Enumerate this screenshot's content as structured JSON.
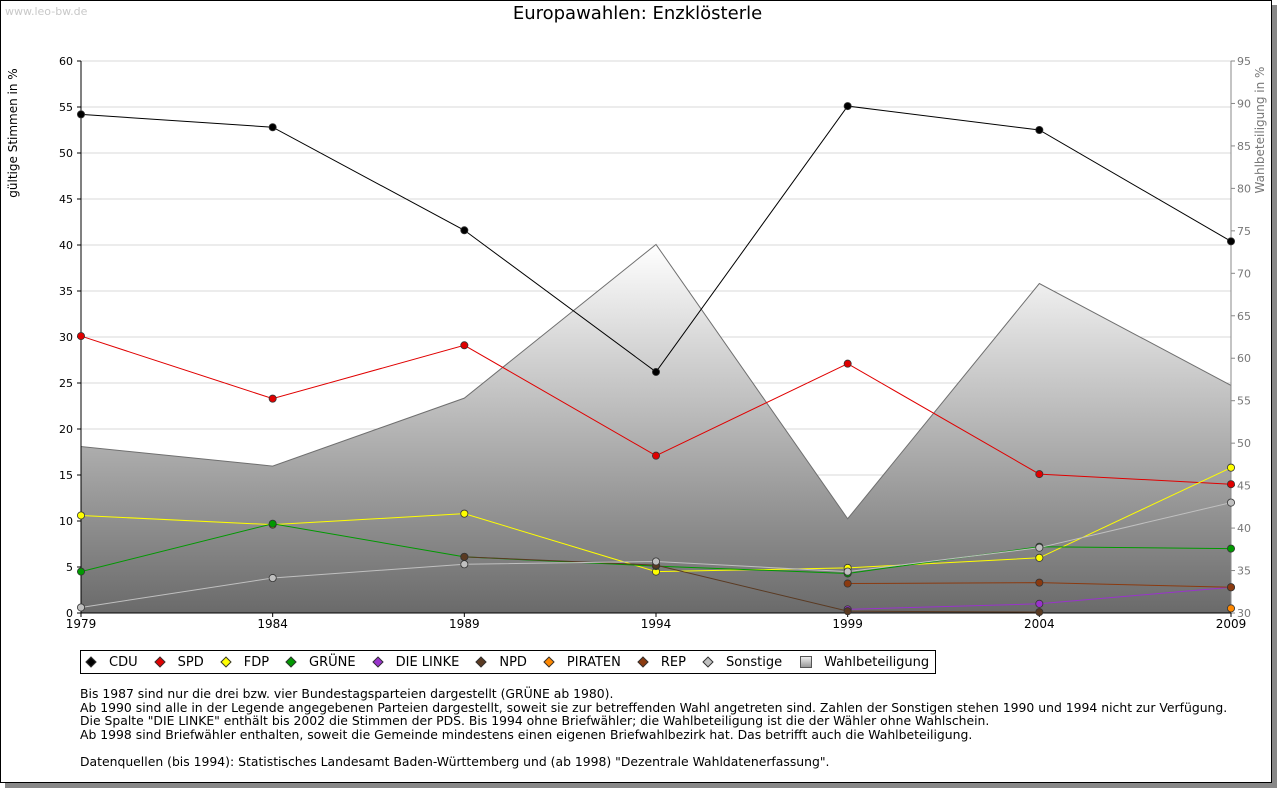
{
  "watermark": "www.leo-bw.de",
  "title": "Europawahlen: Enzklösterle",
  "axes": {
    "ylabel_left": "gültige Stimmen in %",
    "ylabel_right": "Wahlbeteiligung in %"
  },
  "chart_data": {
    "type": "line",
    "title": "Europawahlen: Enzklösterle",
    "xlabel": "",
    "ylabel": "gültige Stimmen in %",
    "ylabel_right": "Wahlbeteiligung in %",
    "x": [
      1979,
      1984,
      1989,
      1994,
      1999,
      2004,
      2009
    ],
    "ylim": [
      0,
      60
    ],
    "yticks": [
      0,
      5,
      10,
      15,
      20,
      25,
      30,
      35,
      40,
      45,
      50,
      55,
      60
    ],
    "ylim_right": [
      30,
      95
    ],
    "yticks_right": [
      30,
      35,
      40,
      45,
      50,
      55,
      60,
      65,
      70,
      75,
      80,
      85,
      90,
      95
    ],
    "grid": true,
    "legend_position": "bottom",
    "series": [
      {
        "name": "CDU",
        "color": "#000000",
        "values": [
          54.2,
          52.8,
          41.6,
          26.2,
          55.1,
          52.5,
          40.4
        ]
      },
      {
        "name": "SPD",
        "color": "#e00000",
        "values": [
          30.1,
          23.3,
          29.1,
          17.1,
          27.1,
          15.1,
          14.0
        ]
      },
      {
        "name": "FDP",
        "color": "#ffff00",
        "values": [
          10.6,
          9.6,
          10.8,
          4.5,
          4.9,
          6.0,
          15.8
        ]
      },
      {
        "name": "GRÜNE",
        "color": "#009900",
        "values": [
          4.5,
          9.7,
          6.1,
          5.1,
          4.3,
          7.2,
          7.0
        ]
      },
      {
        "name": "DIE LINKE",
        "color": "#9933cc",
        "values": [
          null,
          null,
          null,
          null,
          0.4,
          1.0,
          2.8
        ]
      },
      {
        "name": "NPD",
        "color": "#5a3a22",
        "values": [
          null,
          null,
          6.1,
          5.2,
          0.2,
          0.1,
          null
        ]
      },
      {
        "name": "PIRATEN",
        "color": "#ff8800",
        "values": [
          null,
          null,
          null,
          null,
          null,
          null,
          0.5
        ]
      },
      {
        "name": "REP",
        "color": "#8b3a0f",
        "values": [
          null,
          null,
          null,
          null,
          3.2,
          3.3,
          2.8
        ]
      },
      {
        "name": "Sonstige",
        "color": "#c0c0c0",
        "values": [
          0.6,
          3.8,
          5.3,
          5.6,
          4.5,
          7.1,
          12.0
        ]
      }
    ],
    "area": {
      "name": "Wahlbeteiligung",
      "axis": "right",
      "values": [
        49.6,
        47.3,
        55.3,
        73.4,
        41.1,
        68.8,
        56.8
      ]
    }
  },
  "legend": [
    {
      "label": "CDU",
      "color": "#000000",
      "shape": "diamond"
    },
    {
      "label": "SPD",
      "color": "#e00000",
      "shape": "diamond"
    },
    {
      "label": "FDP",
      "color": "#ffff00",
      "shape": "diamond"
    },
    {
      "label": "GRÜNE",
      "color": "#009900",
      "shape": "diamond"
    },
    {
      "label": "DIE LINKE",
      "color": "#9933cc",
      "shape": "diamond"
    },
    {
      "label": "NPD",
      "color": "#5a3a22",
      "shape": "diamond"
    },
    {
      "label": "PIRATEN",
      "color": "#ff8800",
      "shape": "diamond"
    },
    {
      "label": "REP",
      "color": "#8b3a0f",
      "shape": "diamond"
    },
    {
      "label": "Sonstige",
      "color": "#c0c0c0",
      "shape": "diamond"
    },
    {
      "label": "Wahlbeteiligung",
      "color": "#999999",
      "shape": "box"
    }
  ],
  "notes": [
    "Bis 1987 sind nur die drei bzw. vier Bundestagsparteien dargestellt (GRÜNE ab 1980).",
    "Ab 1990 sind alle in der Legende angegebenen Parteien dargestellt, soweit sie zur betreffenden Wahl angetreten sind. Zahlen der Sonstigen stehen 1990 und 1994 nicht zur Verfügung.",
    "Die Spalte \"DIE LINKE\" enthält bis 2002 die Stimmen der PDS. Bis 1994 ohne Briefwähler; die Wahlbeteiligung ist die der Wähler ohne Wahlschein.",
    "Ab 1998 sind Briefwähler enthalten, soweit die Gemeinde mindestens einen eigenen Briefwahlbezirk hat. Das betrifft auch die Wahlbeteiligung.",
    "",
    "Datenquellen (bis 1994): Statistisches Landesamt Baden-Württemberg und (ab 1998) \"Dezentrale Wahldatenerfassung\"."
  ]
}
